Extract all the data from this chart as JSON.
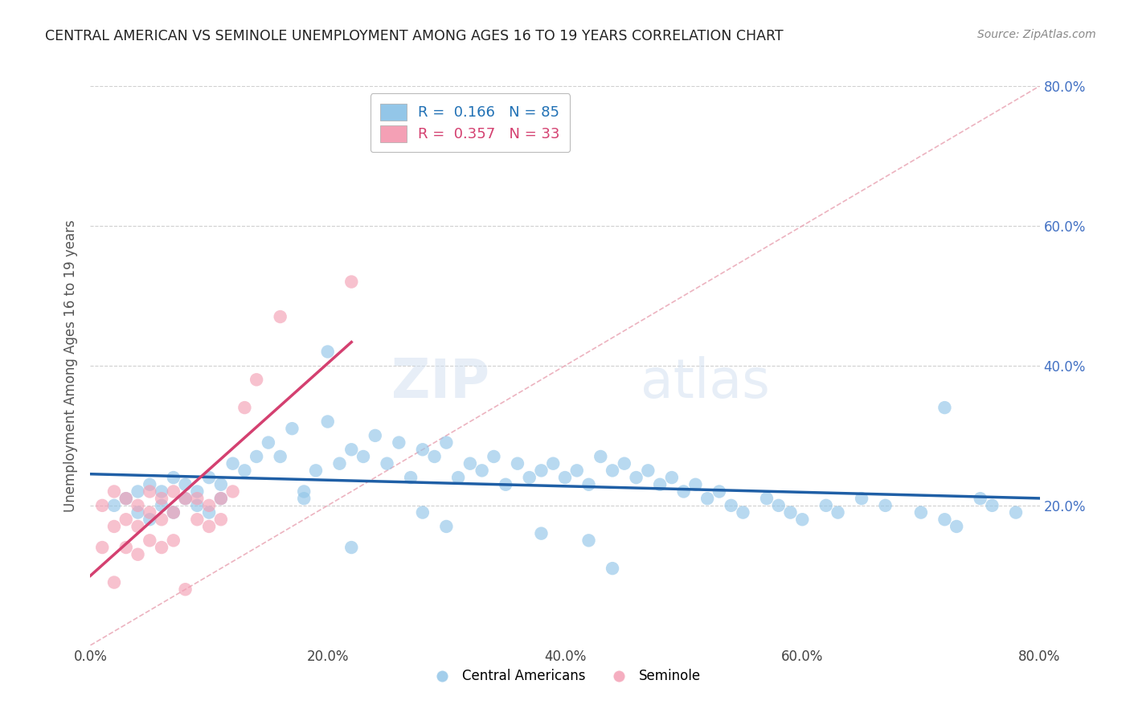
{
  "title": "CENTRAL AMERICAN VS SEMINOLE UNEMPLOYMENT AMONG AGES 16 TO 19 YEARS CORRELATION CHART",
  "source": "Source: ZipAtlas.com",
  "ylabel": "Unemployment Among Ages 16 to 19 years",
  "blue_R": 0.166,
  "blue_N": 85,
  "pink_R": 0.357,
  "pink_N": 33,
  "blue_color": "#93c6e8",
  "pink_color": "#f4a0b5",
  "blue_line_color": "#1f5fa6",
  "pink_line_color": "#d44070",
  "xlim": [
    0.0,
    0.8
  ],
  "ylim": [
    0.0,
    0.8
  ],
  "background_color": "#ffffff",
  "blue_x": [
    0.02,
    0.03,
    0.04,
    0.04,
    0.05,
    0.05,
    0.06,
    0.06,
    0.07,
    0.07,
    0.08,
    0.08,
    0.09,
    0.09,
    0.1,
    0.1,
    0.11,
    0.11,
    0.12,
    0.13,
    0.14,
    0.15,
    0.16,
    0.17,
    0.18,
    0.19,
    0.2,
    0.21,
    0.22,
    0.23,
    0.24,
    0.25,
    0.26,
    0.27,
    0.28,
    0.29,
    0.3,
    0.31,
    0.32,
    0.33,
    0.34,
    0.35,
    0.36,
    0.37,
    0.38,
    0.39,
    0.4,
    0.41,
    0.42,
    0.43,
    0.44,
    0.45,
    0.46,
    0.47,
    0.48,
    0.49,
    0.5,
    0.51,
    0.52,
    0.53,
    0.54,
    0.55,
    0.57,
    0.58,
    0.59,
    0.6,
    0.62,
    0.63,
    0.65,
    0.67,
    0.7,
    0.72,
    0.73,
    0.75,
    0.76,
    0.78,
    0.2,
    0.28,
    0.22,
    0.3,
    0.38,
    0.42,
    0.44,
    0.72,
    0.18
  ],
  "blue_y": [
    0.2,
    0.21,
    0.19,
    0.22,
    0.23,
    0.18,
    0.22,
    0.2,
    0.24,
    0.19,
    0.23,
    0.21,
    0.22,
    0.2,
    0.24,
    0.19,
    0.23,
    0.21,
    0.26,
    0.25,
    0.27,
    0.29,
    0.27,
    0.31,
    0.21,
    0.25,
    0.32,
    0.26,
    0.28,
    0.27,
    0.3,
    0.26,
    0.29,
    0.24,
    0.28,
    0.27,
    0.29,
    0.24,
    0.26,
    0.25,
    0.27,
    0.23,
    0.26,
    0.24,
    0.25,
    0.26,
    0.24,
    0.25,
    0.23,
    0.27,
    0.25,
    0.26,
    0.24,
    0.25,
    0.23,
    0.24,
    0.22,
    0.23,
    0.21,
    0.22,
    0.2,
    0.19,
    0.21,
    0.2,
    0.19,
    0.18,
    0.2,
    0.19,
    0.21,
    0.2,
    0.19,
    0.18,
    0.17,
    0.21,
    0.2,
    0.19,
    0.42,
    0.19,
    0.14,
    0.17,
    0.16,
    0.15,
    0.11,
    0.34,
    0.22
  ],
  "pink_x": [
    0.01,
    0.01,
    0.02,
    0.02,
    0.02,
    0.03,
    0.03,
    0.03,
    0.04,
    0.04,
    0.04,
    0.05,
    0.05,
    0.05,
    0.06,
    0.06,
    0.06,
    0.07,
    0.07,
    0.07,
    0.08,
    0.08,
    0.09,
    0.09,
    0.1,
    0.1,
    0.11,
    0.11,
    0.12,
    0.13,
    0.14,
    0.16,
    0.22
  ],
  "pink_y": [
    0.2,
    0.14,
    0.22,
    0.17,
    0.09,
    0.21,
    0.18,
    0.14,
    0.2,
    0.17,
    0.13,
    0.22,
    0.19,
    0.15,
    0.21,
    0.18,
    0.14,
    0.22,
    0.19,
    0.15,
    0.21,
    0.08,
    0.21,
    0.18,
    0.2,
    0.17,
    0.21,
    0.18,
    0.22,
    0.34,
    0.38,
    0.47,
    0.52
  ]
}
